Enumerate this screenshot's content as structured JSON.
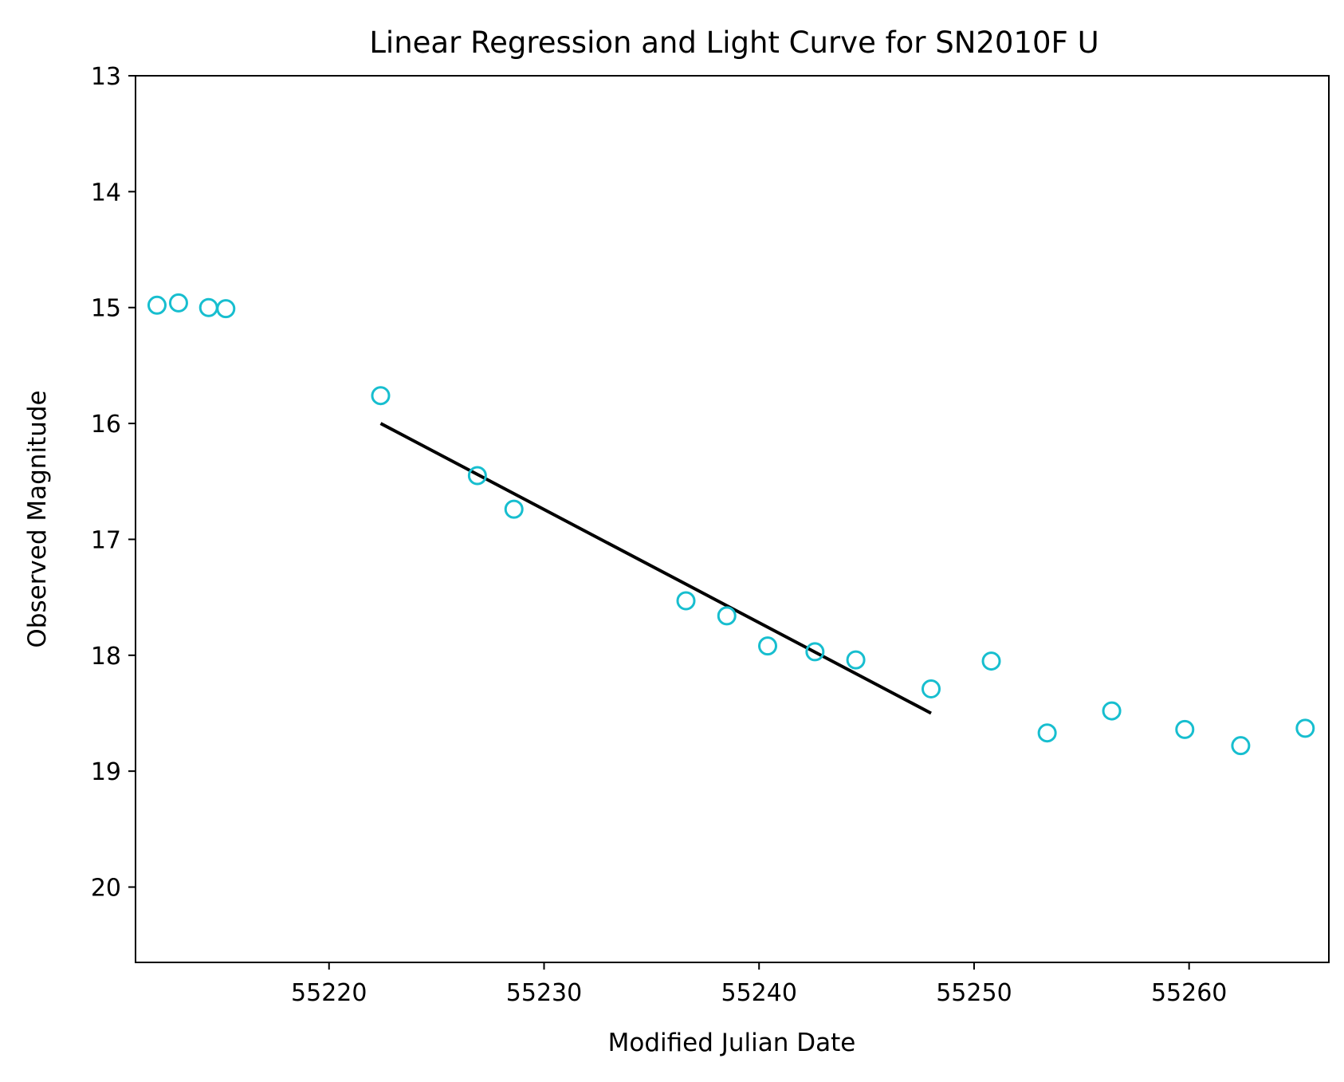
{
  "chart_data": {
    "type": "scatter",
    "title": "Linear Regression and Light Curve for SN2010F U",
    "xlabel": "Modified Julian Date",
    "ylabel": "Observed Magnitude",
    "xlim": [
      55211.0,
      55266.5
    ],
    "ylim": [
      20.65,
      13.0
    ],
    "y_inverted": true,
    "grid": false,
    "x_ticks": [
      55220,
      55230,
      55240,
      55250,
      55260
    ],
    "y_ticks": [
      13,
      14,
      15,
      16,
      17,
      18,
      19,
      20
    ],
    "colors": {
      "points": "#17becf",
      "fit_line": "#000000",
      "axes": "#000000"
    },
    "series": [
      {
        "type": "scatter",
        "marker": "open-circle",
        "points": [
          {
            "x": 55212.0,
            "y": 14.98
          },
          {
            "x": 55213.0,
            "y": 14.96
          },
          {
            "x": 55214.4,
            "y": 15.0
          },
          {
            "x": 55215.2,
            "y": 15.01
          },
          {
            "x": 55222.4,
            "y": 15.76
          },
          {
            "x": 55226.9,
            "y": 16.45
          },
          {
            "x": 55228.6,
            "y": 16.74
          },
          {
            "x": 55236.6,
            "y": 17.53
          },
          {
            "x": 55238.5,
            "y": 17.66
          },
          {
            "x": 55240.4,
            "y": 17.92
          },
          {
            "x": 55242.6,
            "y": 17.97
          },
          {
            "x": 55244.5,
            "y": 18.04
          },
          {
            "x": 55248.0,
            "y": 18.29
          },
          {
            "x": 55250.8,
            "y": 18.05
          },
          {
            "x": 55253.4,
            "y": 18.67
          },
          {
            "x": 55256.4,
            "y": 18.48
          },
          {
            "x": 55259.8,
            "y": 18.64
          },
          {
            "x": 55262.4,
            "y": 18.78
          },
          {
            "x": 55265.4,
            "y": 18.63
          }
        ]
      },
      {
        "type": "line",
        "points": [
          {
            "x": 55222.4,
            "y": 16.0
          },
          {
            "x": 55248.0,
            "y": 18.5
          }
        ]
      }
    ]
  }
}
